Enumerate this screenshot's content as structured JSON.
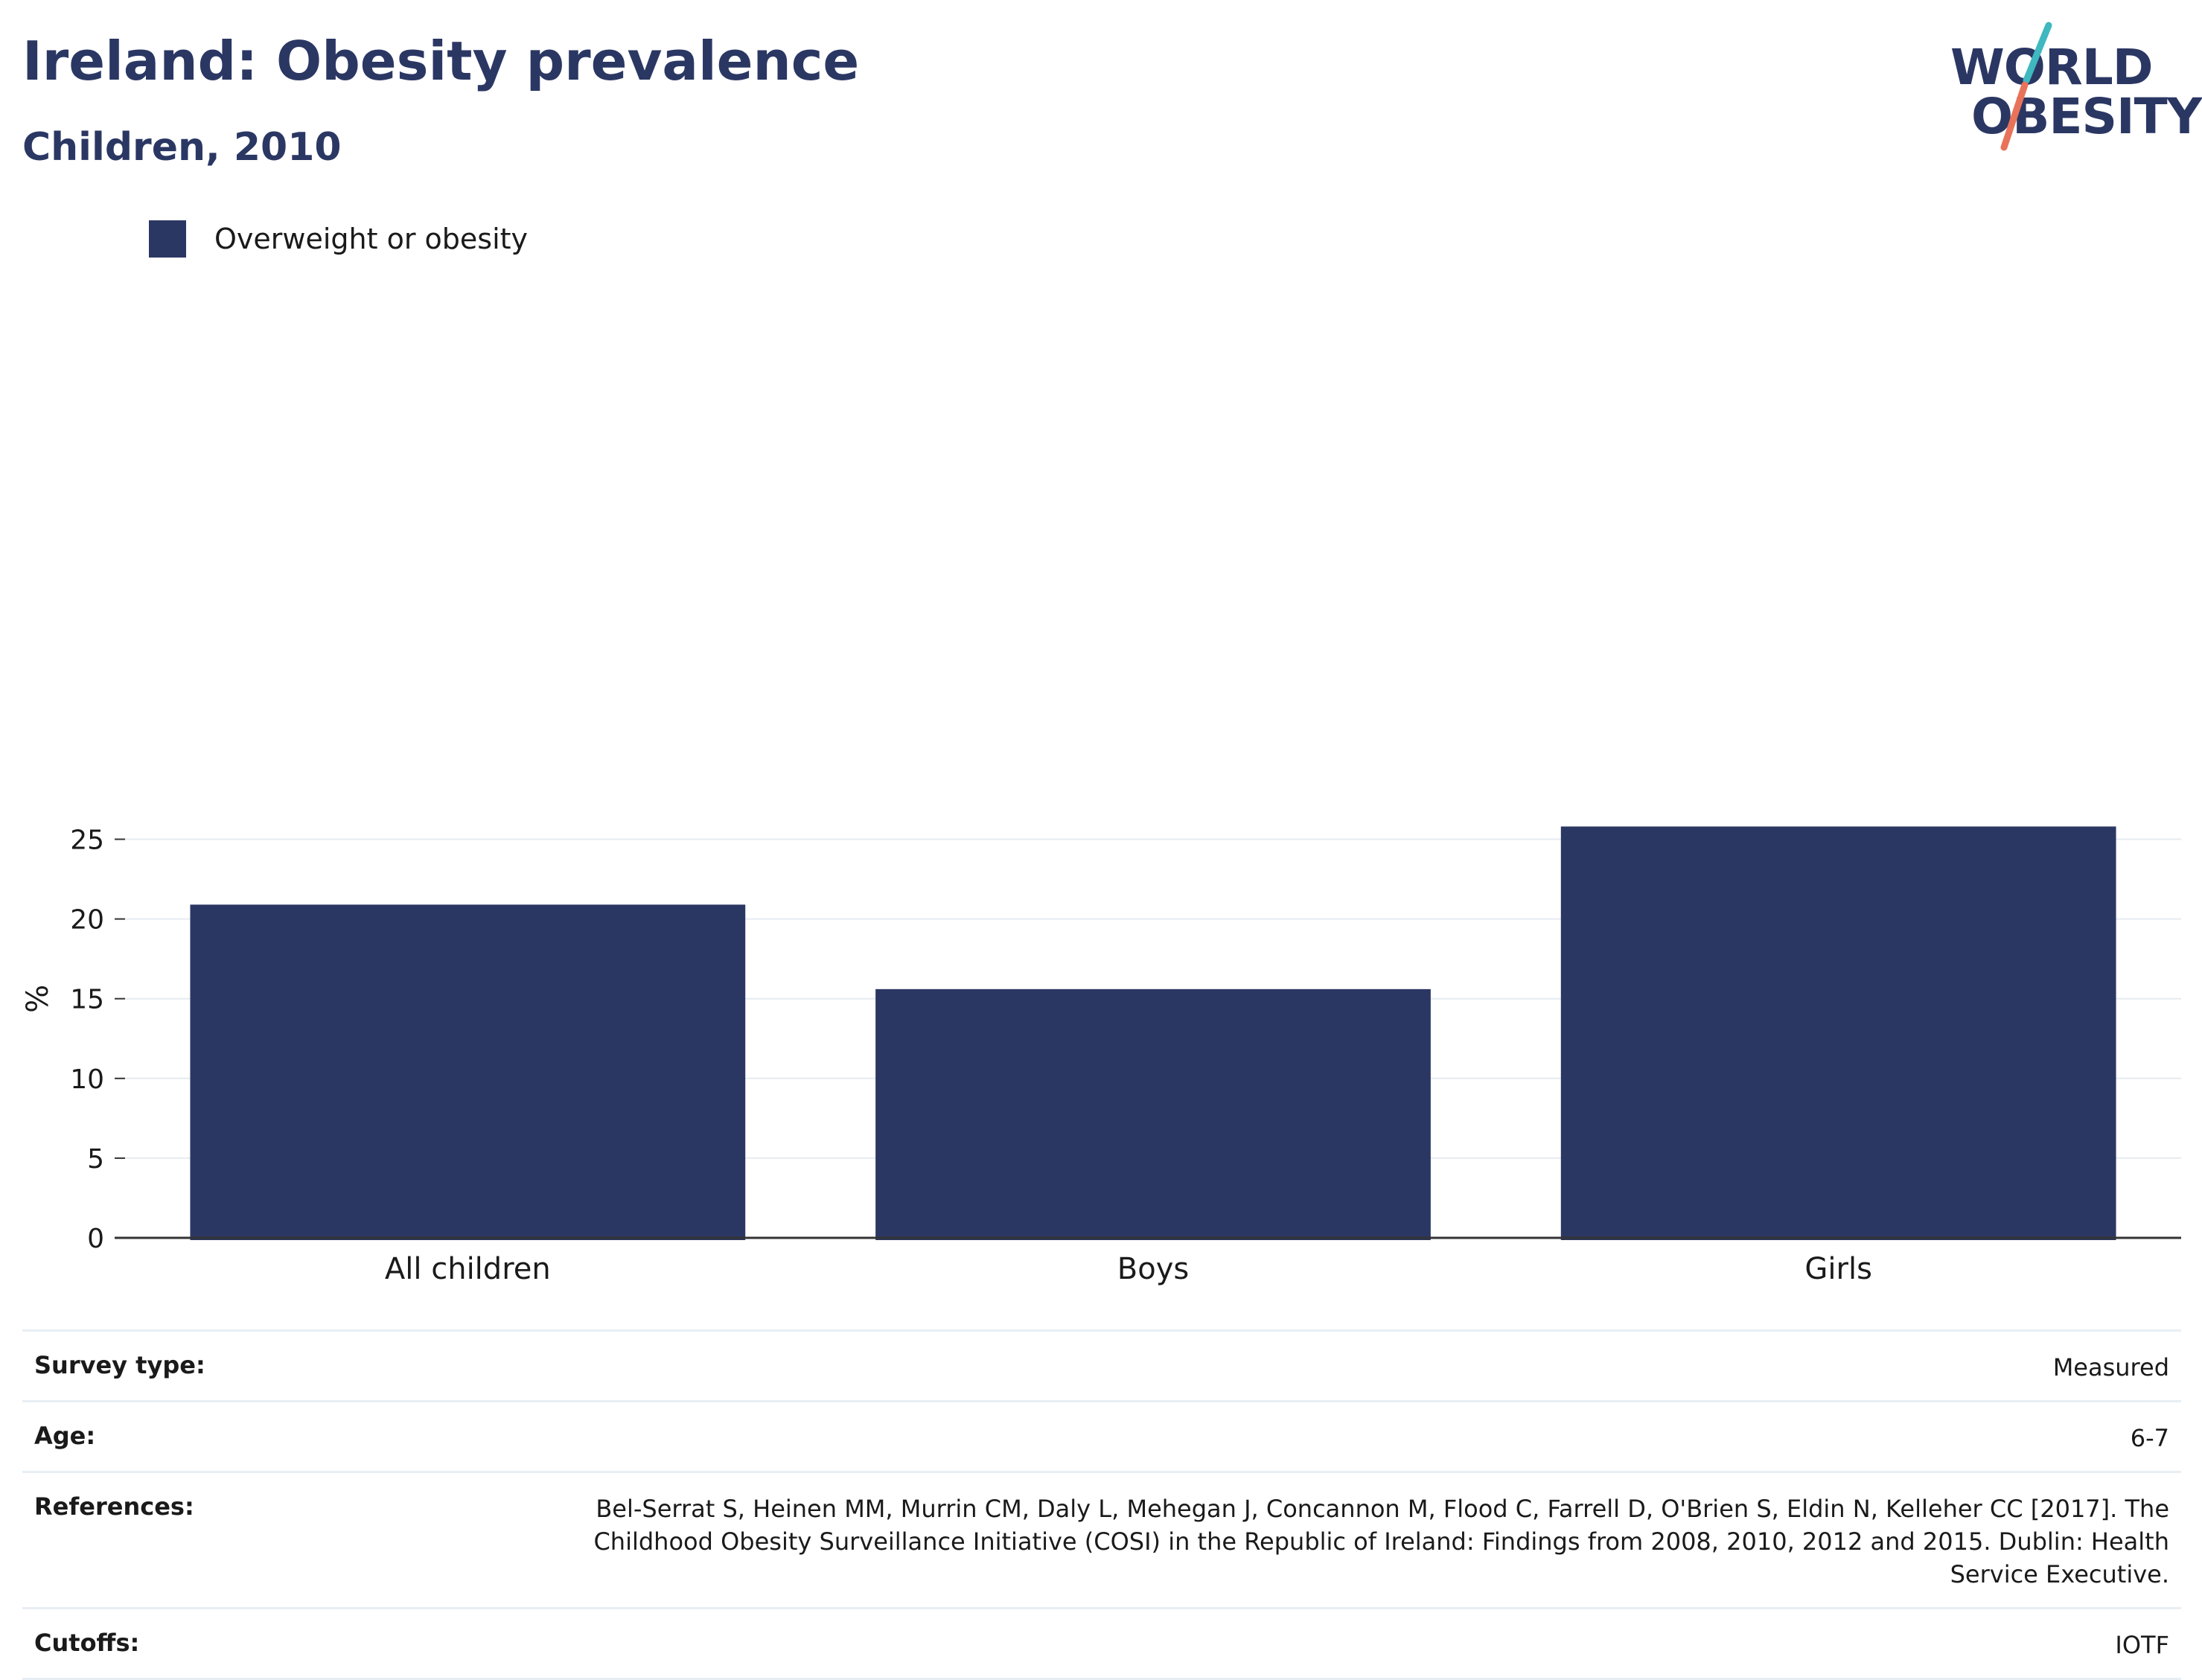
{
  "header": {
    "title": "Ireland: Obesity prevalence",
    "subtitle": "Children, 2010"
  },
  "logo": {
    "line1": "WORLD",
    "line2": "OBESITY",
    "accent_teal": "#3fb8c0",
    "accent_coral": "#e8735a"
  },
  "legend": {
    "items": [
      {
        "label": "Overweight or obesity",
        "color": "#2b3763"
      }
    ]
  },
  "chart_data": {
    "type": "bar",
    "categories": [
      "All children",
      "Boys",
      "Girls"
    ],
    "series": [
      {
        "name": "Overweight or obesity",
        "values": [
          20.9,
          15.6,
          25.8
        ],
        "color": "#2b3763"
      }
    ],
    "ylabel": "%",
    "ylim": [
      0,
      30
    ],
    "yticks": [
      0,
      5,
      10,
      15,
      20,
      25
    ],
    "grid": true,
    "legend_position": "top-left"
  },
  "info": {
    "rows": [
      {
        "key": "Survey type:",
        "value": "Measured"
      },
      {
        "key": "Age:",
        "value": "6-7"
      },
      {
        "key": "References:",
        "value": "Bel-Serrat S, Heinen MM, Murrin CM, Daly L, Mehegan J, Concannon M, Flood C, Farrell D, O'Brien S, Eldin N, Kelleher CC [2017]. The Childhood Obesity Surveillance Initiative (COSI) in the Republic of Ireland: Findings from 2008, 2010, 2012 and 2015. Dublin: Health Service Executive."
      },
      {
        "key": "Cutoffs:",
        "value": "IOTF"
      }
    ]
  }
}
